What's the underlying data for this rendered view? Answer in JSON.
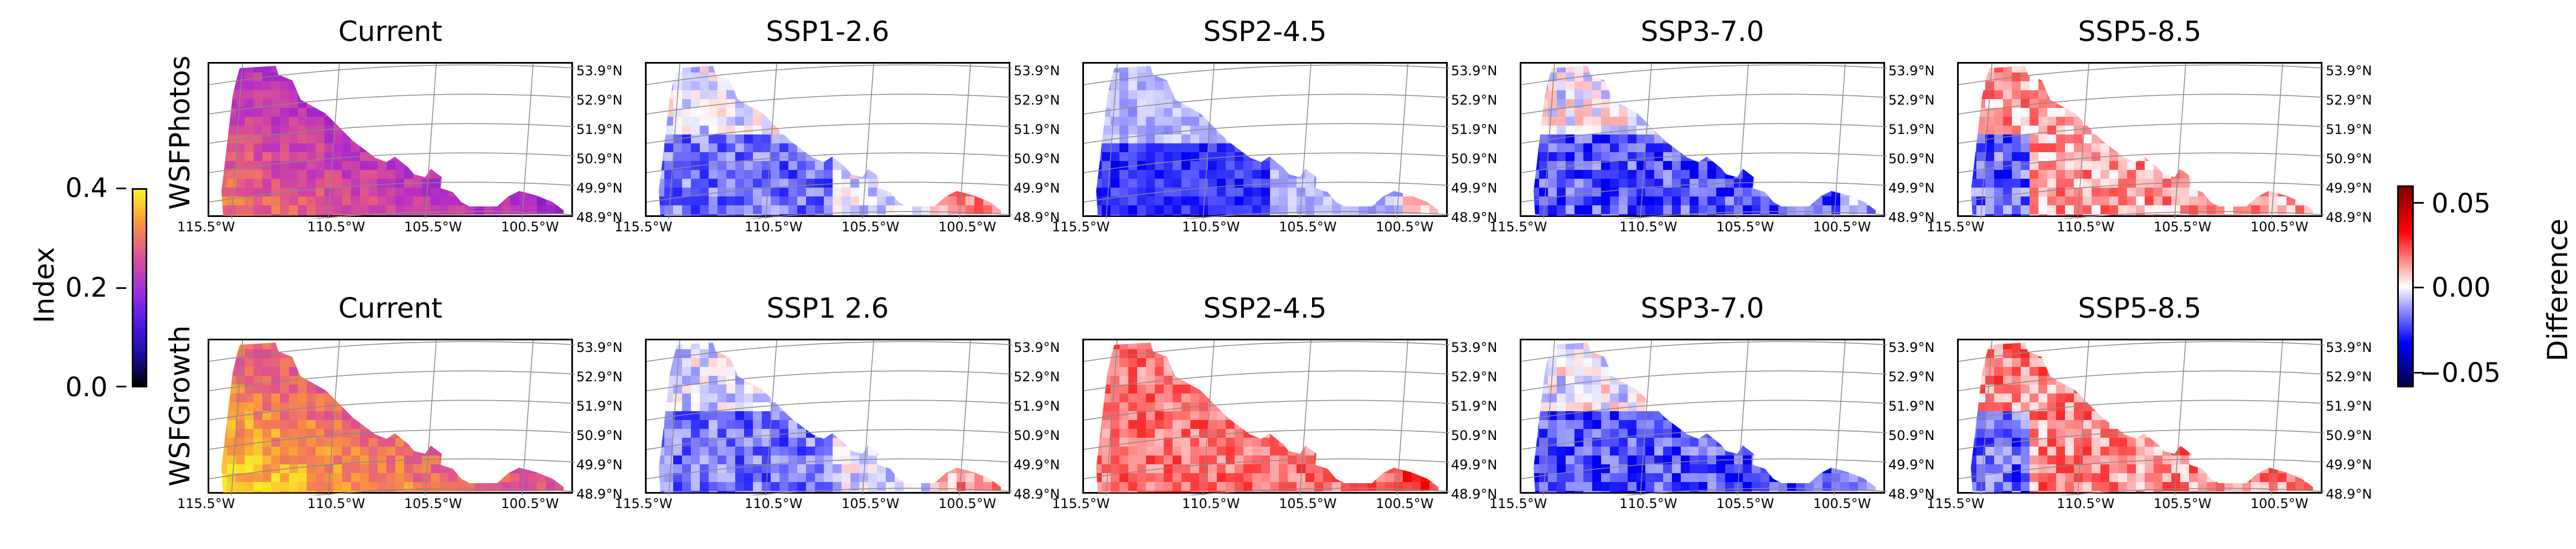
{
  "chart_data": {
    "type": "heatmap",
    "rows": [
      {
        "label": "WSFPhotos",
        "panels": [
          {
            "title": "Current",
            "kind": "index",
            "pattern": "photos_current"
          },
          {
            "title": "SSP1-2.6",
            "kind": "diff",
            "pattern": "ssp126_photos"
          },
          {
            "title": "SSP2-4.5",
            "kind": "diff",
            "pattern": "ssp245_photos"
          },
          {
            "title": "SSP3-7.0",
            "kind": "diff",
            "pattern": "ssp370_photos"
          },
          {
            "title": "SSP5-8.5",
            "kind": "diff",
            "pattern": "ssp585_photos"
          }
        ]
      },
      {
        "label": "WSFGrowth",
        "panels": [
          {
            "title": "Current",
            "kind": "index",
            "pattern": "growth_current"
          },
          {
            "title": "SSP1 2.6",
            "kind": "diff",
            "pattern": "ssp126_growth"
          },
          {
            "title": "SSP2-4.5",
            "kind": "diff",
            "pattern": "ssp245_growth"
          },
          {
            "title": "SSP3-7.0",
            "kind": "diff",
            "pattern": "ssp370_growth"
          },
          {
            "title": "SSP5-8.5",
            "kind": "diff",
            "pattern": "ssp585_growth"
          }
        ]
      }
    ],
    "lat_ticks": [
      "53.9°N",
      "52.9°N",
      "51.9°N",
      "50.9°N",
      "49.9°N",
      "48.9°N"
    ],
    "lon_ticks": [
      "115.5°W",
      "110.5°W",
      "105.5°W",
      "100.5°W"
    ],
    "index_colorbar": {
      "label": "Index",
      "ticks": [
        "0.4",
        "0.2",
        "0.0"
      ],
      "range": [
        0,
        0.4
      ],
      "colormap": "plasma-like (black-blue-magenta-yellow)"
    },
    "difference_colorbar": {
      "label": "Difference",
      "ticks": [
        "0.05",
        "0.00",
        "−0.05"
      ],
      "range": [
        -0.06,
        0.06
      ],
      "colormap": "seismic (blue-white-red)"
    }
  }
}
